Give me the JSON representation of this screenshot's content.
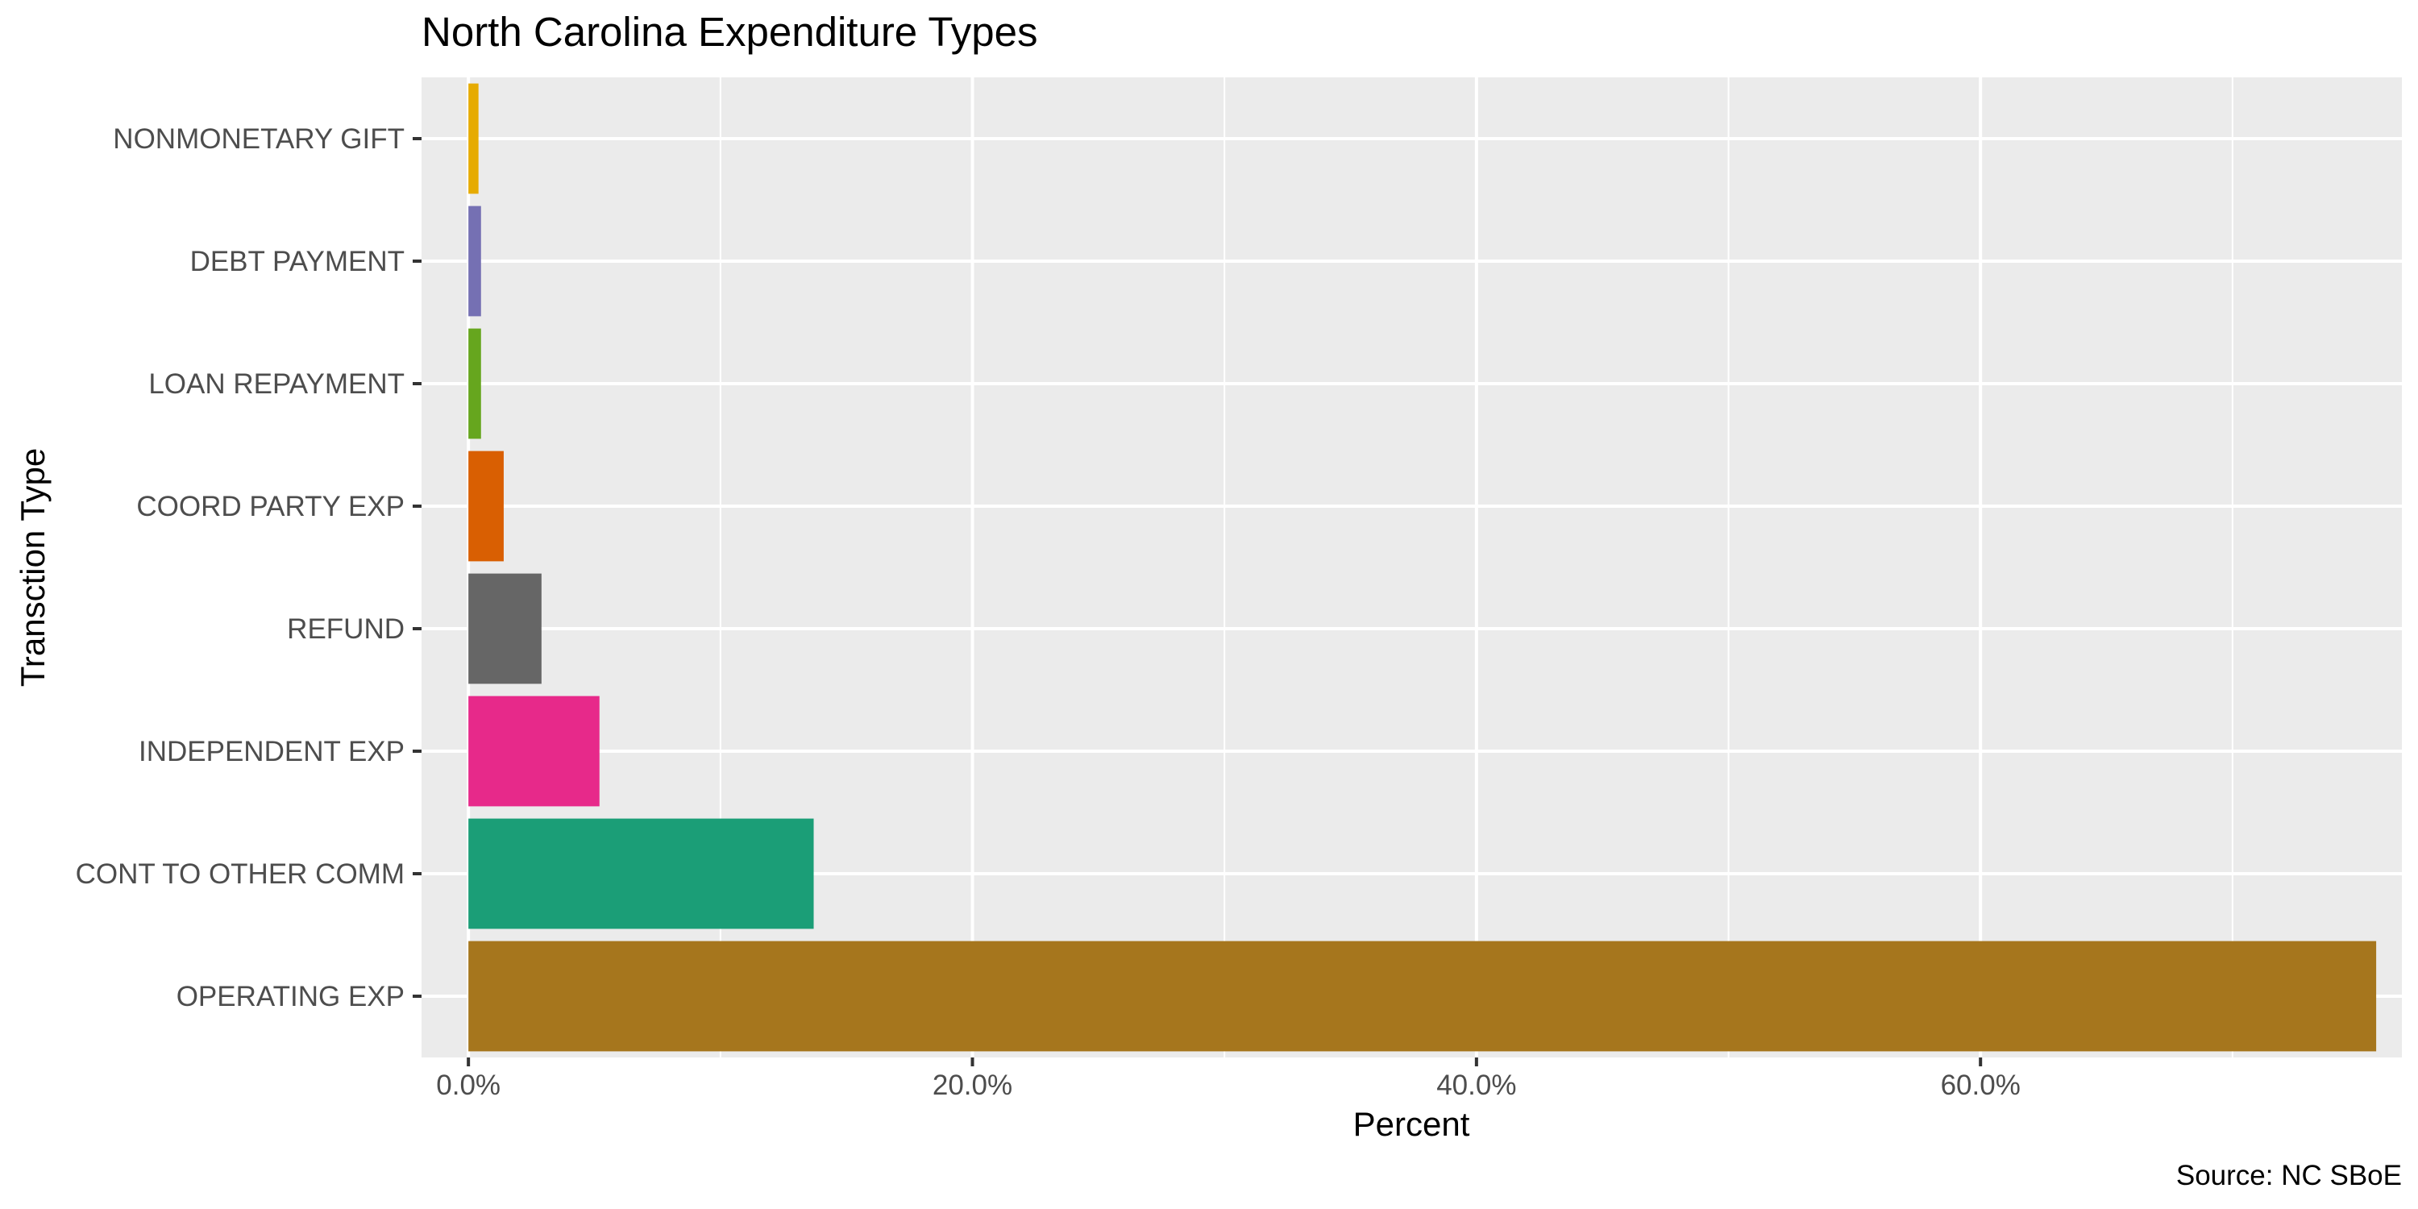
{
  "chart_data": {
    "type": "bar",
    "orientation": "horizontal",
    "title": "North Carolina Expenditure Types",
    "xlabel": "Percent",
    "ylabel": "Transction Type",
    "caption": "Source: NC SBoE",
    "xlim": [
      -0.0186,
      0.7672
    ],
    "x_ticks": [
      0,
      0.2,
      0.4,
      0.6
    ],
    "x_tick_labels": [
      "0.0%",
      "20.0%",
      "40.0%",
      "60.0%"
    ],
    "grid": true,
    "legend": "none",
    "categories": [
      "OPERATING EXP",
      "CONT TO OTHER COMM",
      "INDEPENDENT EXP",
      "REFUND",
      "COORD PARTY EXP",
      "LOAN REPAYMENT",
      "DEBT PAYMENT",
      "NONMONETARY GIFT"
    ],
    "values": [
      0.757,
      0.137,
      0.052,
      0.029,
      0.014,
      0.005,
      0.005,
      0.004
    ],
    "colors": [
      "#A6761D",
      "#1B9E77",
      "#E7298A",
      "#666666",
      "#D95F02",
      "#66A61E",
      "#7570B3",
      "#E6AB02"
    ]
  }
}
